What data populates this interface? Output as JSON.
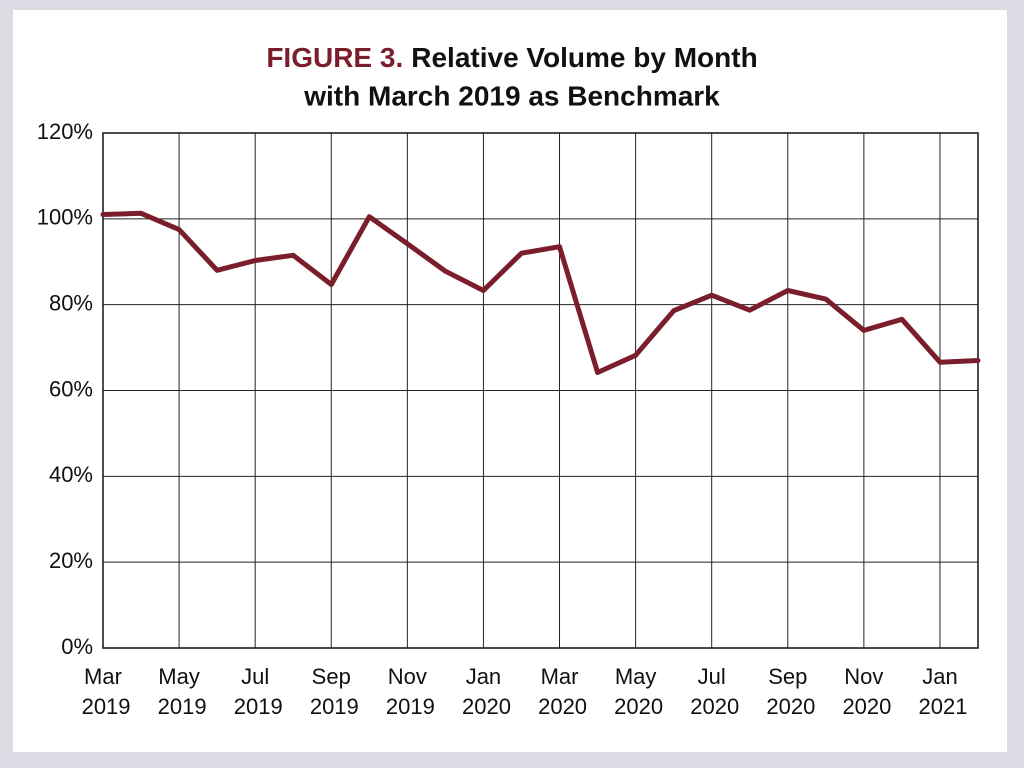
{
  "chart_data": {
    "type": "line",
    "figure_label": "FIGURE 3.",
    "title_lines": [
      "Relative Volume by Month",
      "with March 2019 as Benchmark"
    ],
    "categories": [
      "Mar 2019",
      null,
      "May 2019",
      null,
      "Jul 2019",
      null,
      "Sep 2019",
      null,
      "Nov 2019",
      null,
      "Jan 2020",
      null,
      "Mar 2020",
      null,
      "May 2020",
      null,
      "Jul 2020",
      null,
      "Sep 2020",
      null,
      "Nov 2020",
      null,
      "Jan 2021",
      null
    ],
    "series": [
      {
        "name": "Relative Volume",
        "color": "#7a1e2c",
        "values": [
          101,
          101.3,
          97.5,
          88,
          90.3,
          91.5,
          84.7,
          100.5,
          94.2,
          87.8,
          83.3,
          92,
          93.5,
          64.2,
          68.2,
          78.6,
          82.2,
          78.7,
          83.3,
          81.3,
          74,
          76.6,
          66.6,
          67
        ]
      }
    ],
    "ylim": [
      0,
      120
    ],
    "yticks": [
      {
        "value": 0,
        "label": "0%"
      },
      {
        "value": 20,
        "label": "20%"
      },
      {
        "value": 40,
        "label": "40%"
      },
      {
        "value": 60,
        "label": "60%"
      },
      {
        "value": 80,
        "label": "80%"
      },
      {
        "value": 100,
        "label": "100%"
      },
      {
        "value": 120,
        "label": "120%"
      }
    ],
    "grid": true,
    "legend": false
  }
}
